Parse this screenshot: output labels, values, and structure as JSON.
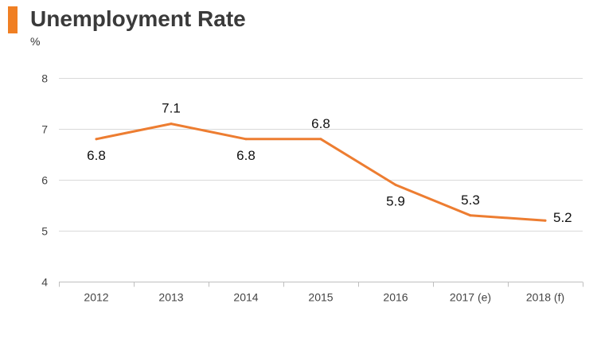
{
  "header": {
    "title": "Unemployment Rate",
    "unit": "%",
    "accent_color": "#f07f23"
  },
  "chart_data": {
    "type": "line",
    "title": "Unemployment Rate",
    "ylabel": "%",
    "xlabel": "",
    "categories": [
      "2012",
      "2013",
      "2014",
      "2015",
      "2016",
      "2017 (e)",
      "2018 (f)"
    ],
    "series": [
      {
        "values": [
          6.8,
          7.1,
          6.8,
          6.8,
          5.9,
          5.3,
          5.2
        ],
        "color": "#ed7d31"
      }
    ],
    "data_labels": [
      "6.8",
      "7.1",
      "6.8",
      "6.8",
      "5.9",
      "5.3",
      "5.2"
    ],
    "ylim": [
      4,
      8
    ],
    "yticks": [
      "4",
      "5",
      "6",
      "7",
      "8"
    ],
    "grid": true,
    "legend": "none"
  }
}
